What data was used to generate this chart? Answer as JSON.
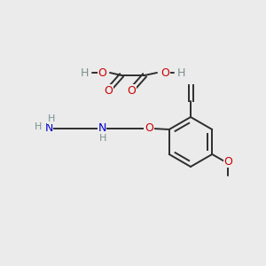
{
  "bg_color": "#ebebeb",
  "atom_colors": {
    "C": "#2d2d2d",
    "O": "#cc0000",
    "N": "#0000cc",
    "H": "#7a9090"
  },
  "bond_color": "#2d2d2d",
  "bond_width": 1.4
}
